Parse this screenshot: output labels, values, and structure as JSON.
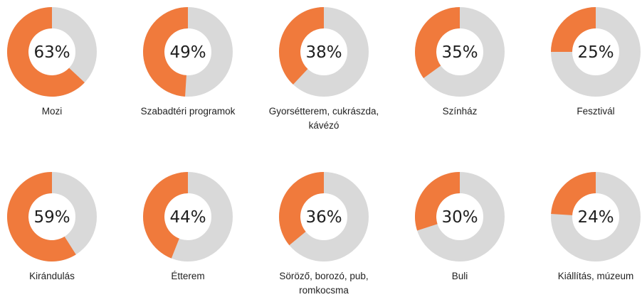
{
  "chart_data": {
    "type": "pie",
    "variant": "donut",
    "colors": {
      "value": "#f07a3c",
      "remainder": "#d9d9d9",
      "text": "#1f1f1f"
    },
    "items": [
      {
        "category": [
          "Mozi"
        ],
        "value": 63,
        "label": "63%"
      },
      {
        "category": [
          "Szabadtéri programok"
        ],
        "value": 49,
        "label": "49%"
      },
      {
        "category": [
          "Gyorsétterem, cukrászda,",
          "kávézó"
        ],
        "value": 38,
        "label": "38%"
      },
      {
        "category": [
          "Színház"
        ],
        "value": 35,
        "label": "35%"
      },
      {
        "category": [
          "Fesztivál"
        ],
        "value": 25,
        "label": "25%"
      },
      {
        "category": [
          "Kirándulás"
        ],
        "value": 59,
        "label": "59%"
      },
      {
        "category": [
          "Étterem"
        ],
        "value": 44,
        "label": "44%"
      },
      {
        "category": [
          "Söröző, borozó, pub,",
          "romkocsma"
        ],
        "value": 36,
        "label": "36%"
      },
      {
        "category": [
          "Buli"
        ],
        "value": 30,
        "label": "30%"
      },
      {
        "category": [
          "Kiállítás, múzeum"
        ],
        "value": 24,
        "label": "24%"
      }
    ]
  }
}
